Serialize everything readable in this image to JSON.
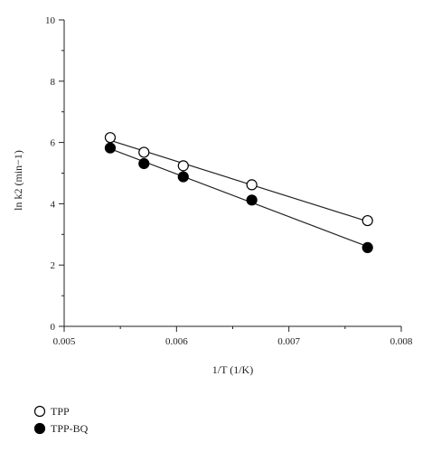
{
  "chart_data": {
    "type": "scatter",
    "xlabel": "1/T (1/K)",
    "ylabel": "ln k2 (min−1)",
    "xlim": [
      0.005,
      0.008
    ],
    "ylim": [
      0,
      10
    ],
    "x_ticks": [
      "0.005",
      "0.006",
      "0.007",
      "0.008"
    ],
    "y_ticks": [
      "0",
      "2",
      "4",
      "6",
      "8",
      "10"
    ],
    "grid": false,
    "legend_position": "bottom-left",
    "series": [
      {
        "name": "TPP",
        "marker": "open-circle",
        "x": [
          0.00541,
          0.00571,
          0.00606,
          0.00667,
          0.0077
        ],
        "y": [
          6.16,
          5.68,
          5.24,
          4.62,
          3.45
        ],
        "fit_line": true
      },
      {
        "name": "TPP-BQ",
        "marker": "filled-circle",
        "x": [
          0.00541,
          0.00571,
          0.00606,
          0.00667,
          0.0077
        ],
        "y": [
          5.82,
          5.31,
          4.88,
          4.12,
          2.57
        ],
        "fit_line": true
      }
    ]
  }
}
